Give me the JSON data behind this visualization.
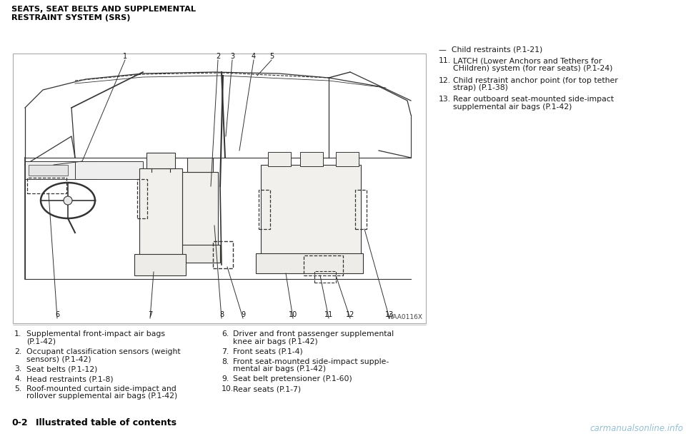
{
  "title_line1": "SEATS, SEAT BELTS AND SUPPLEMENTAL",
  "title_line2": "RESTRAINT SYSTEM (SRS)",
  "image_label": "WAA0116X",
  "left_items": [
    {
      "num": "1.",
      "text": "Supplemental front-impact air bags\n(P.1-42)"
    },
    {
      "num": "2.",
      "text": "Occupant classification sensors (weight\nsensors) (P.1-42)"
    },
    {
      "num": "3.",
      "text": "Seat belts (P.1-12)"
    },
    {
      "num": "4.",
      "text": "Head restraints (P.1-8)"
    },
    {
      "num": "5.",
      "text": "Roof-mounted curtain side-impact and\nrollover supplemental air bags (P.1-42)"
    }
  ],
  "right_items": [
    {
      "num": "6.",
      "text": "Driver and front passenger supplemental\nknee air bags (P.1-42)"
    },
    {
      "num": "7.",
      "text": "Front seats (P.1-4)"
    },
    {
      "num": "8.",
      "text": "Front seat-mounted side-impact supple-\nmental air bags (P.1-42)"
    },
    {
      "num": "9.",
      "text": "Seat belt pretensioner (P.1-60)"
    },
    {
      "num": "10.",
      "text": "Rear seats (P.1-7)"
    }
  ],
  "far_right_items": [
    {
      "num": "",
      "text": "—  Child restraints (P.1-21)"
    },
    {
      "num": "11.",
      "text": "LATCH (Lower Anchors and Tethers for\nCHildren) system (for rear seats) (P.1-24)"
    },
    {
      "num": "12.",
      "text": "Child restraint anchor point (for top tether\nstrap) (P.1-38)"
    },
    {
      "num": "13.",
      "text": "Rear outboard seat-mounted side-impact\nsupplemental air bags (P.1-42)"
    }
  ],
  "watermark": "carmanualsonline.info",
  "bg_color": "#ffffff",
  "title_color": "#000000",
  "text_color": "#1a1a1a",
  "box_border_color": "#888888",
  "title_font_size": 8.2,
  "body_font_size": 7.8,
  "footer_font_size": 9.0,
  "diagram_line_color": "#333333",
  "diagram_bg": "#ffffff"
}
